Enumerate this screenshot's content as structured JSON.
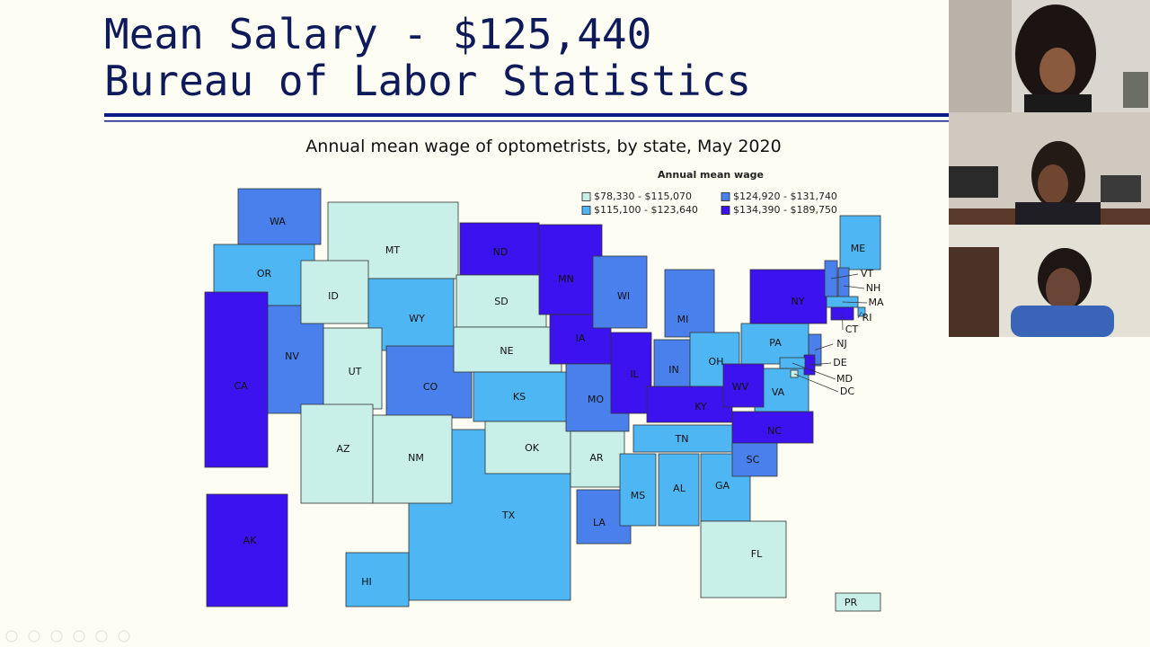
{
  "slide": {
    "title_lines": [
      "Mean Salary  - $125,440",
      "Bureau of Labor Statistics"
    ]
  },
  "map": {
    "title": "Annual mean wage of optometrists, by state, May 2020",
    "legend": {
      "title": "Annual mean wage",
      "items": [
        {
          "label": "$78,330 - $115,070",
          "color": "#c8f0e8"
        },
        {
          "label": "$115,100 - $123,640",
          "color": "#4fb6f4"
        },
        {
          "label": "$124,920 - $131,740",
          "color": "#4a80ec"
        },
        {
          "label": "$134,390 - $189,750",
          "color": "#3c12ee"
        }
      ]
    },
    "states": [
      {
        "label": "TX",
        "color": "#4fb6f4"
      },
      {
        "label": "WA",
        "color": "#4a80ec"
      },
      {
        "label": "OR",
        "color": "#4fb6f4"
      },
      {
        "label": "NV",
        "color": "#4a80ec"
      },
      {
        "label": "CA",
        "color": "#3c12ee"
      },
      {
        "label": "MT",
        "color": "#c8f0e8"
      },
      {
        "label": "ID",
        "color": "#c8f0e8"
      },
      {
        "label": "WY",
        "color": "#4fb6f4"
      },
      {
        "label": "UT",
        "color": "#c8f0e8"
      },
      {
        "label": "AZ",
        "color": "#c8f0e8"
      },
      {
        "label": "CO",
        "color": "#4a80ec"
      },
      {
        "label": "NM",
        "color": "#c8f0e8"
      },
      {
        "label": "ND",
        "color": "#3c12ee"
      },
      {
        "label": "SD",
        "color": "#c8f0e8"
      },
      {
        "label": "NE",
        "color": "#c8f0e8"
      },
      {
        "label": "KS",
        "color": "#4fb6f4"
      },
      {
        "label": "OK",
        "color": "#c8f0e8"
      },
      {
        "label": "MN",
        "color": "#3c12ee"
      },
      {
        "label": "IA",
        "color": "#3c12ee"
      },
      {
        "label": "MO",
        "color": "#4a80ec"
      },
      {
        "label": "AR",
        "color": "#c8f0e8"
      },
      {
        "label": "LA",
        "color": "#4a80ec"
      },
      {
        "label": "WI",
        "color": "#4a80ec"
      },
      {
        "label": "IL",
        "color": "#3c12ee"
      },
      {
        "label": "MI",
        "color": "#4a80ec"
      },
      {
        "label": "IN",
        "color": "#4a80ec"
      },
      {
        "label": "OH",
        "color": "#4fb6f4"
      },
      {
        "label": "KY",
        "color": "#3c12ee"
      },
      {
        "label": "TN",
        "color": "#4fb6f4"
      },
      {
        "label": "MS",
        "color": "#4fb6f4"
      },
      {
        "label": "AL",
        "color": "#4fb6f4"
      },
      {
        "label": "GA",
        "color": "#4fb6f4"
      },
      {
        "label": "FL",
        "color": "#c8f0e8"
      },
      {
        "label": "SC",
        "color": "#4a80ec"
      },
      {
        "label": "NC",
        "color": "#3c12ee"
      },
      {
        "label": "VA",
        "color": "#4fb6f4"
      },
      {
        "label": "WV",
        "color": "#3c12ee"
      },
      {
        "label": "PA",
        "color": "#4fb6f4"
      },
      {
        "label": "NY",
        "color": "#3c12ee"
      },
      {
        "label": "ME",
        "color": "#4fb6f4"
      },
      {
        "label": "VT",
        "color": "#4a80ec"
      },
      {
        "label": "NH",
        "color": "#4a80ec"
      },
      {
        "label": "MA",
        "color": "#4fb6f4"
      },
      {
        "label": "RI",
        "color": "#4fb6f4"
      },
      {
        "label": "CT",
        "color": "#3c12ee"
      },
      {
        "label": "NJ",
        "color": "#4a80ec"
      },
      {
        "label": "DE",
        "color": "#3c12ee"
      },
      {
        "label": "MD",
        "color": "#4fb6f4"
      },
      {
        "label": "DC",
        "color": "#c8f0e8"
      },
      {
        "label": "AK",
        "color": "#3c12ee"
      },
      {
        "label": "HI",
        "color": "#4fb6f4"
      },
      {
        "label": "PR",
        "color": "#c8f0e8"
      }
    ]
  }
}
